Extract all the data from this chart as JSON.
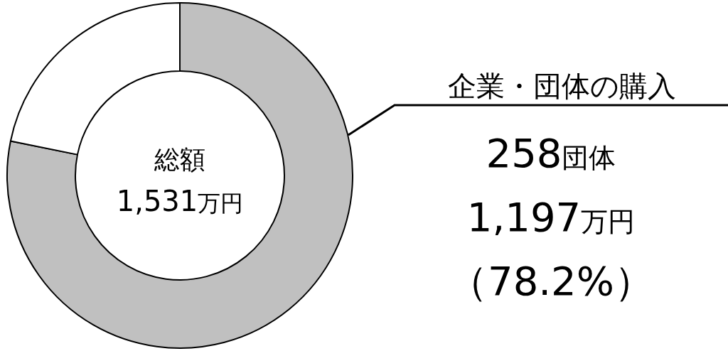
{
  "chart_data": {
    "type": "donut",
    "categories": [
      "企業・団体の購入",
      null
    ],
    "values": [
      78.2,
      21.8
    ],
    "colors": [
      "#c0c0c0",
      "#ffffff"
    ],
    "value_labels": [
      "（78.2%）",
      null
    ],
    "annotations": [
      "総額",
      "1,531万円",
      "258団体",
      "1,197万円"
    ]
  }
}
